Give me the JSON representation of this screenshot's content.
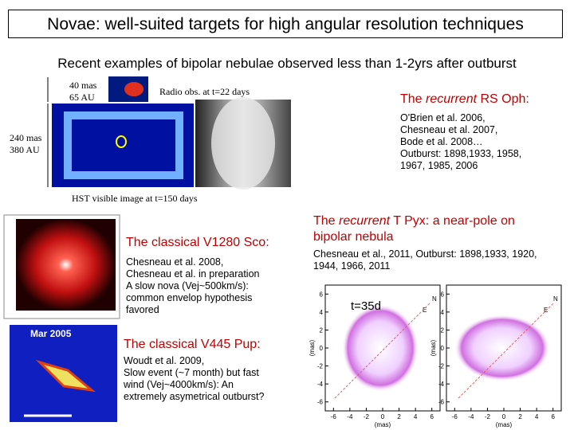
{
  "header": {
    "title": "Novae: well-suited targets for high angular resolution techniques"
  },
  "subtitle": "Recent examples of bipolar nebulae observed less than 1-2yrs after outburst",
  "rs_oph": {
    "labels": [
      "40 mas",
      "65 AU",
      "Radio obs. at t=22 days",
      "240 mas",
      "380 AU",
      "HST visible image at t=150 days"
    ],
    "heading": [
      "The ",
      "recurrent",
      " RS Oph:"
    ],
    "refs": [
      "O'Brien et al. 2006,",
      "Chesneau et al. 2007,",
      "Bode et al. 2008…",
      "Outburst: 1898,1933, 1958,",
      "1967, 1985, 2006"
    ]
  },
  "v1280_sco": {
    "heading": "The classical V1280 Sco:",
    "lines": [
      "Chesneau et al. 2008,",
      "Chesneau et al. in preparation",
      "A slow nova (Vej~500km/s):",
      "common envelop hypothesis",
      "favored"
    ]
  },
  "v445_pup": {
    "image_label": "Mar 2005",
    "heading": "The classical V445 Pup:",
    "lines": [
      "Woudt et al. 2009,",
      "Slow event (~7 month) but fast",
      "wind (Vej~4000km/s): An",
      "extremely asymetrical outburst?"
    ]
  },
  "t_pyx": {
    "heading": [
      "The ",
      "recurrent",
      " T Pyx: a near-pole on",
      "bipolar nebula"
    ],
    "lines": [
      "Chesneau et al., 2011, Outburst: 1898,1933, 1920,",
      "1944, 1966, 2011"
    ],
    "plot_label": "t=35d",
    "y_ticks": [
      6,
      4,
      2,
      0,
      -2,
      -4,
      -6
    ],
    "x_ticks": [
      -6,
      -4,
      -2,
      0,
      2,
      4,
      6
    ],
    "axis_unit": "(mas)",
    "compass": [
      "N",
      "E"
    ]
  }
}
